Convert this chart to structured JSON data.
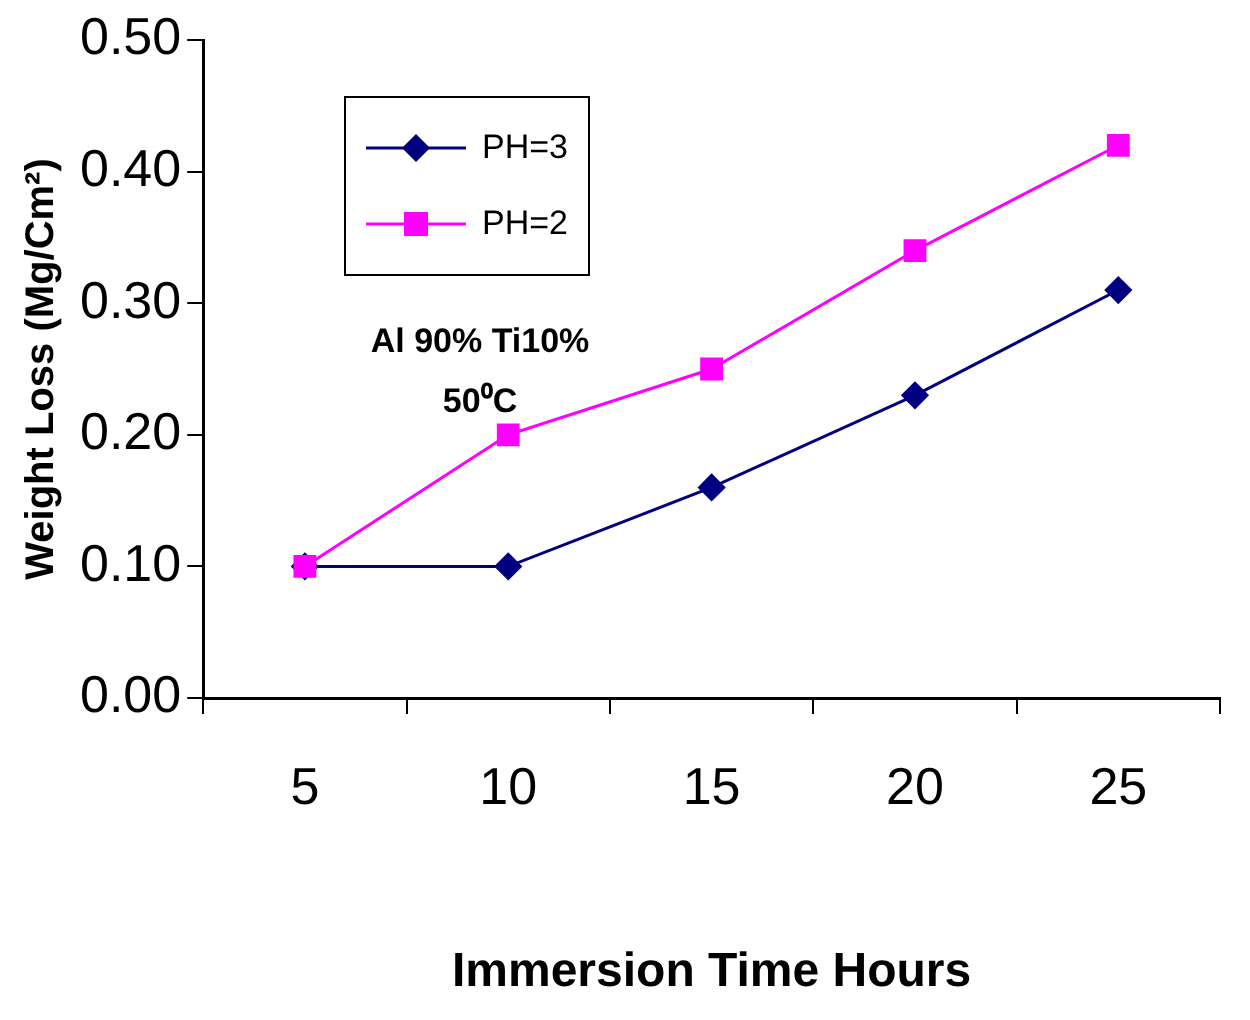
{
  "chart_data": {
    "type": "line",
    "xlabel": "Immersion Time Hours",
    "ylabel": "Weight Loss (Mg/Cm²)",
    "categories": [
      "5",
      "10",
      "15",
      "20",
      "25"
    ],
    "series": [
      {
        "name": "PH=3",
        "color": "#000080",
        "marker": "diamond",
        "values": [
          0.1,
          0.1,
          0.16,
          0.23,
          0.31
        ]
      },
      {
        "name": "PH=2",
        "color": "#ff00ff",
        "marker": "square",
        "values": [
          0.1,
          0.2,
          0.25,
          0.34,
          0.42
        ]
      }
    ],
    "ylim": [
      0,
      0.5
    ],
    "yticks": [
      {
        "value": 0,
        "label": "0.00"
      },
      {
        "value": 0.1,
        "label": "0.10"
      },
      {
        "value": 0.2,
        "label": "0.20"
      },
      {
        "value": 0.3,
        "label": "0.30"
      },
      {
        "value": 0.4,
        "label": "0.40"
      },
      {
        "value": 0.5,
        "label": "0.50"
      }
    ],
    "annotations": [
      "Al 90% Ti10%",
      "50⁰C"
    ],
    "legend": "top left",
    "grid": false,
    "line_style": "solid"
  }
}
